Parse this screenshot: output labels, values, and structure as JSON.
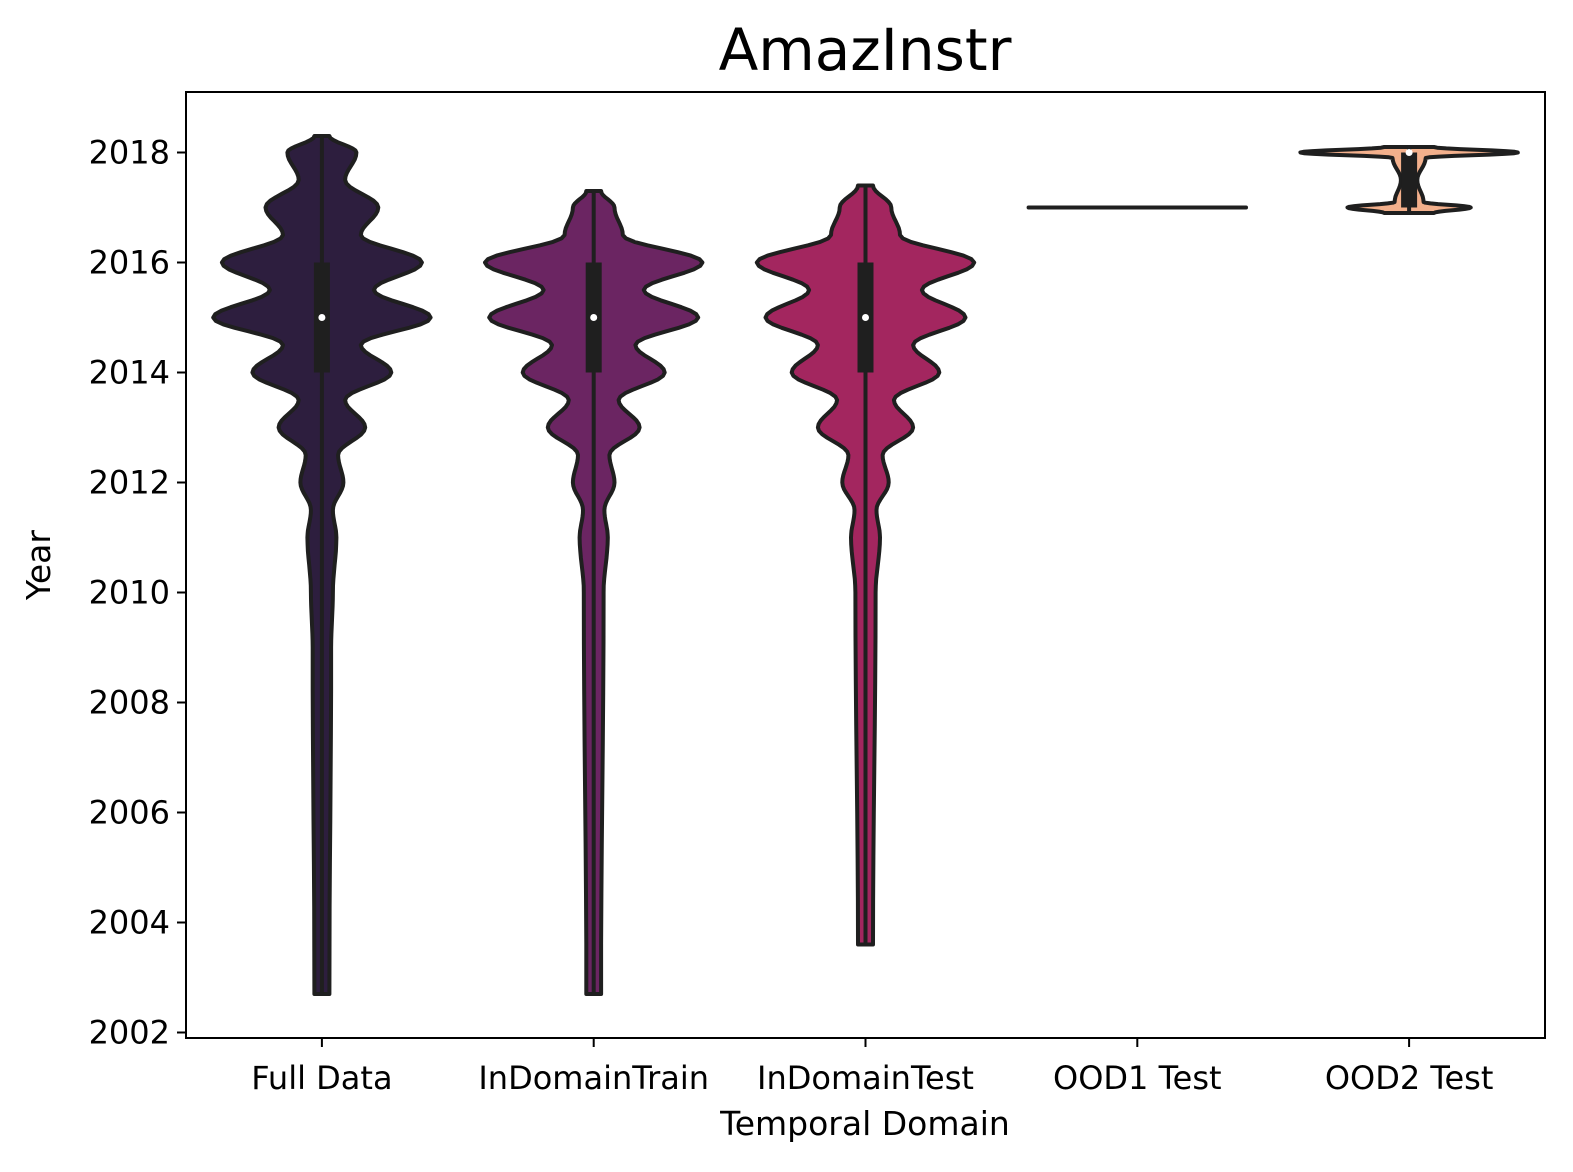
{
  "chart_data": {
    "type": "violin",
    "title": "AmazInstr",
    "xlabel": "Temporal Domain",
    "ylabel": "Year",
    "ylim": [
      2001.9,
      2019.1
    ],
    "yticks": [
      2002,
      2004,
      2006,
      2008,
      2010,
      2012,
      2014,
      2016,
      2018
    ],
    "grid": false,
    "palette": [
      "#2d1e3e",
      "#6b2562",
      "#a3265f",
      "#e0674f",
      "#f3b08c"
    ],
    "outline_color": "#1f1f1f",
    "categories": [
      "Full Data",
      "InDomainTrain",
      "InDomainTest",
      "OOD1 Test",
      "OOD2 Test"
    ],
    "series": [
      {
        "category": "Full Data",
        "min": 2002.7,
        "max": 2018.3,
        "q1": 2014,
        "median": 2015,
        "q3": 2016,
        "density": [
          [
            2002.7,
            0.004
          ],
          [
            2009,
            0.006
          ],
          [
            2010,
            0.008
          ],
          [
            2011,
            0.012
          ],
          [
            2011.5,
            0.008
          ],
          [
            2012,
            0.02
          ],
          [
            2012.5,
            0.014
          ],
          [
            2013,
            0.045
          ],
          [
            2013.5,
            0.022
          ],
          [
            2014,
            0.075
          ],
          [
            2014.5,
            0.04
          ],
          [
            2015,
            0.12
          ],
          [
            2015.5,
            0.055
          ],
          [
            2016,
            0.11
          ],
          [
            2016.5,
            0.04
          ],
          [
            2017,
            0.06
          ],
          [
            2017.5,
            0.022
          ],
          [
            2018,
            0.035
          ],
          [
            2018.3,
            0.004
          ]
        ]
      },
      {
        "category": "InDomainTrain",
        "min": 2002.7,
        "max": 2017.3,
        "q1": 2014,
        "median": 2015,
        "q3": 2016,
        "density": [
          [
            2002.7,
            0.004
          ],
          [
            2010,
            0.007
          ],
          [
            2011,
            0.012
          ],
          [
            2011.5,
            0.008
          ],
          [
            2012,
            0.02
          ],
          [
            2012.5,
            0.014
          ],
          [
            2013,
            0.05
          ],
          [
            2013.5,
            0.025
          ],
          [
            2014,
            0.08
          ],
          [
            2014.5,
            0.045
          ],
          [
            2015,
            0.12
          ],
          [
            2015.5,
            0.055
          ],
          [
            2016,
            0.125
          ],
          [
            2016.5,
            0.03
          ],
          [
            2017,
            0.02
          ],
          [
            2017.3,
            0.004
          ]
        ]
      },
      {
        "category": "InDomainTest",
        "min": 2003.6,
        "max": 2017.4,
        "q1": 2014,
        "median": 2015,
        "q3": 2016,
        "density": [
          [
            2003.6,
            0.004
          ],
          [
            2010,
            0.007
          ],
          [
            2011,
            0.012
          ],
          [
            2011.5,
            0.008
          ],
          [
            2012,
            0.022
          ],
          [
            2012.5,
            0.015
          ],
          [
            2013,
            0.05
          ],
          [
            2013.5,
            0.028
          ],
          [
            2014,
            0.08
          ],
          [
            2014.5,
            0.05
          ],
          [
            2015,
            0.11
          ],
          [
            2015.5,
            0.06
          ],
          [
            2016,
            0.12
          ],
          [
            2016.5,
            0.035
          ],
          [
            2017,
            0.025
          ],
          [
            2017.4,
            0.004
          ]
        ]
      },
      {
        "category": "OOD1 Test",
        "min": 2017,
        "max": 2017,
        "q1": 2017,
        "median": 2017,
        "q3": 2017,
        "density": [
          [
            2017,
            1.0
          ]
        ]
      },
      {
        "category": "OOD2 Test",
        "min": 2016.9,
        "max": 2018.1,
        "q1": 2017,
        "median": 2018,
        "q3": 2018,
        "density": [
          [
            2016.9,
            0.2
          ],
          [
            2017,
            0.55
          ],
          [
            2017.1,
            0.1
          ],
          [
            2017.5,
            0.04
          ],
          [
            2017.9,
            0.12
          ],
          [
            2018,
            1.0
          ],
          [
            2018.1,
            0.2
          ]
        ]
      }
    ]
  }
}
